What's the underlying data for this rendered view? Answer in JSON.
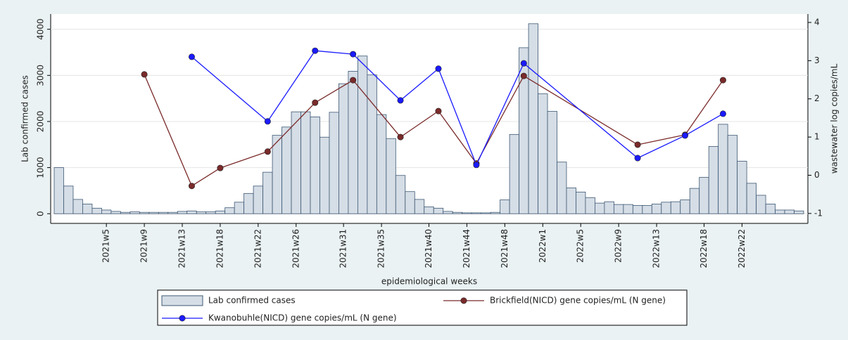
{
  "chart_data": {
    "type": "combo",
    "y_label": "Lab confirmed cases",
    "y2_label": "wastewater log copies/mL",
    "x_label": "epidemiological weeks",
    "categories": [
      null,
      null,
      null,
      null,
      null,
      "2021w5",
      null,
      null,
      null,
      "2021w9",
      null,
      null,
      null,
      "2021w13",
      null,
      null,
      null,
      "2021w18",
      null,
      null,
      null,
      "2021w22",
      null,
      null,
      null,
      "2021w26",
      null,
      null,
      null,
      null,
      "2021w31",
      null,
      null,
      null,
      "2021w35",
      null,
      null,
      null,
      null,
      "2021w40",
      null,
      null,
      null,
      "2021w44",
      null,
      null,
      null,
      "2021w48",
      null,
      null,
      null,
      "2022w1",
      null,
      null,
      null,
      "2022w5",
      null,
      null,
      null,
      "2022w9",
      null,
      null,
      null,
      "2022w13",
      null,
      null,
      null,
      null,
      "2022w18",
      null,
      null,
      null,
      "2022w22",
      null,
      null,
      null,
      null,
      null,
      null
    ],
    "series": [
      {
        "name": "Lab confirmed cases",
        "type": "bar",
        "color": "#d5dde6",
        "values": [
          1000,
          600,
          310,
          210,
          120,
          80,
          50,
          30,
          40,
          30,
          30,
          30,
          30,
          50,
          60,
          40,
          40,
          60,
          130,
          250,
          440,
          600,
          900,
          1700,
          1880,
          2210,
          2210,
          2100,
          1660,
          2200,
          2820,
          3090,
          3420,
          3010,
          2150,
          1630,
          830,
          480,
          310,
          150,
          120,
          50,
          30,
          20,
          20,
          20,
          30,
          300,
          1720,
          3600,
          4120,
          2600,
          2220,
          1120,
          560,
          470,
          350,
          230,
          260,
          200,
          200,
          180,
          180,
          210,
          250,
          260,
          300,
          550,
          790,
          1460,
          1940,
          1700,
          1140,
          660,
          400,
          210,
          80,
          80,
          60
        ]
      },
      {
        "name": "Brickfield(NICD) gene copies/mL (N gene)",
        "type": "line",
        "axis": "y2",
        "color": "#7a2a2a",
        "values": [
          null,
          null,
          null,
          null,
          null,
          null,
          null,
          null,
          null,
          2.64,
          null,
          null,
          null,
          null,
          -0.28,
          null,
          null,
          0.19,
          null,
          null,
          null,
          null,
          0.62,
          null,
          null,
          null,
          null,
          1.9,
          null,
          null,
          null,
          2.49,
          null,
          null,
          null,
          null,
          1.0,
          null,
          null,
          null,
          1.68,
          null,
          null,
          null,
          0.31,
          null,
          null,
          null,
          null,
          2.6,
          null,
          null,
          null,
          null,
          null,
          null,
          null,
          null,
          null,
          null,
          null,
          0.8,
          null,
          null,
          null,
          null,
          1.06,
          null,
          null,
          null,
          2.49,
          null,
          null,
          null,
          null,
          null,
          null,
          null,
          null
        ]
      },
      {
        "name": "Kwanobuhle(NICD) gene copies/mL (N gene)",
        "type": "line",
        "axis": "y2",
        "color": "#1a1aff",
        "values": [
          null,
          null,
          null,
          null,
          null,
          null,
          null,
          null,
          null,
          null,
          null,
          null,
          null,
          null,
          3.1,
          null,
          null,
          null,
          null,
          null,
          null,
          null,
          1.41,
          null,
          null,
          null,
          null,
          3.26,
          null,
          null,
          null,
          3.17,
          null,
          null,
          null,
          null,
          1.96,
          null,
          null,
          null,
          2.79,
          null,
          null,
          null,
          0.27,
          null,
          null,
          null,
          null,
          2.93,
          null,
          null,
          null,
          null,
          null,
          null,
          null,
          null,
          null,
          null,
          null,
          0.45,
          null,
          null,
          null,
          null,
          1.04,
          null,
          null,
          null,
          1.61,
          null,
          null,
          null,
          null,
          null,
          null,
          null,
          null
        ]
      }
    ],
    "ylim": [
      -210,
      4330
    ],
    "yticks": [
      0,
      1000,
      2000,
      3000,
      4000
    ],
    "y2lim": [
      -1.26,
      4.22
    ],
    "y2ticks": [
      -1,
      0,
      1,
      2,
      3,
      4
    ],
    "grid": true,
    "connect_missing": true
  }
}
